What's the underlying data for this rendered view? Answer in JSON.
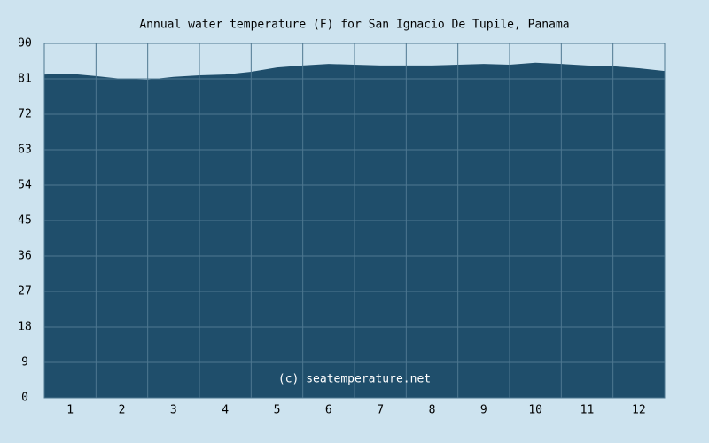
{
  "chart_data": {
    "type": "area",
    "title": "Annual water temperature (F) for San Ignacio De Tupile, Panama",
    "annotation": "(c) seatemperature.net",
    "x": [
      0.5,
      1,
      1.5,
      2,
      2.5,
      3,
      3.5,
      4,
      4.5,
      5,
      5.5,
      6,
      6.5,
      7,
      7.5,
      8,
      8.5,
      9,
      9.5,
      10,
      10.5,
      11,
      11.5,
      12,
      12.5
    ],
    "values": [
      82.1,
      82.3,
      81.7,
      81.0,
      80.8,
      81.5,
      81.9,
      82.1,
      82.8,
      83.9,
      84.4,
      84.8,
      84.6,
      84.4,
      84.4,
      84.4,
      84.6,
      84.8,
      84.6,
      85.1,
      84.8,
      84.4,
      84.2,
      83.7,
      83.0
    ],
    "color": "#1f4e6b",
    "xlim": [
      0.5,
      12.5
    ],
    "xticks": [
      1,
      2,
      3,
      4,
      5,
      6,
      7,
      8,
      9,
      10,
      11,
      12
    ],
    "ylim": [
      0,
      90
    ],
    "yticks": [
      0,
      9,
      18,
      27,
      36,
      45,
      54,
      63,
      72,
      81,
      90
    ],
    "grid": true
  }
}
